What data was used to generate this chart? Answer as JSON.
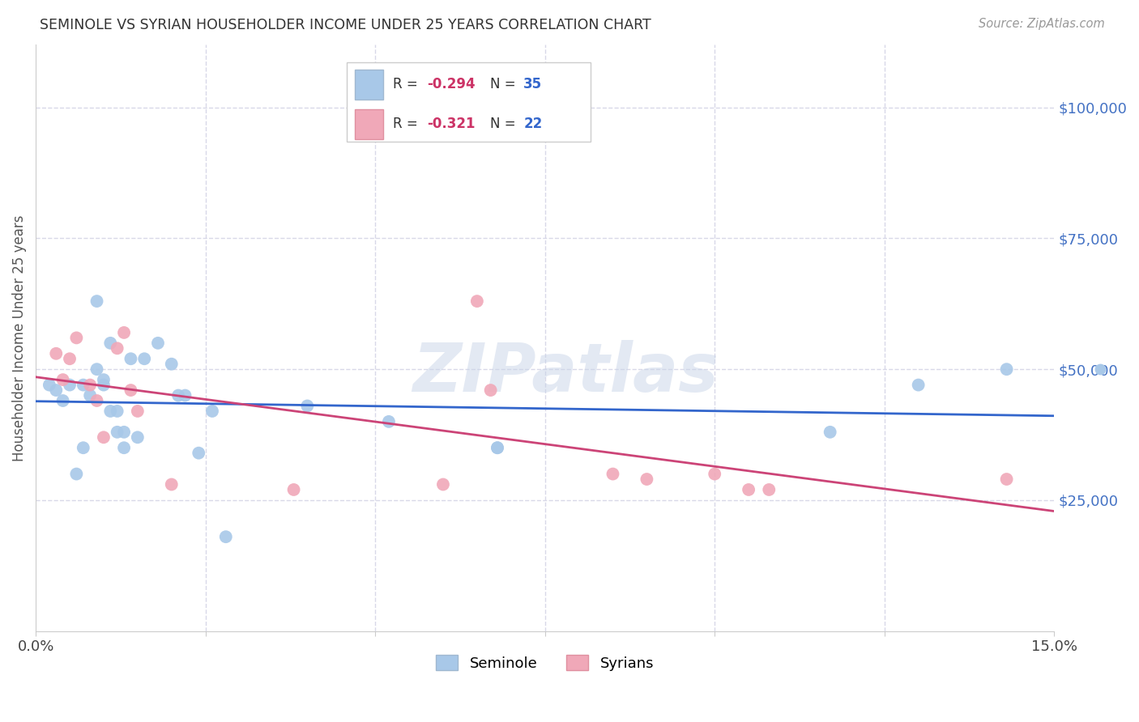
{
  "title": "SEMINOLE VS SYRIAN HOUSEHOLDER INCOME UNDER 25 YEARS CORRELATION CHART",
  "source": "Source: ZipAtlas.com",
  "ylabel": "Householder Income Under 25 years",
  "xlim": [
    0.0,
    0.15
  ],
  "ylim": [
    0,
    112000
  ],
  "ytick_labels_right": [
    "$25,000",
    "$50,000",
    "$75,000",
    "$100,000"
  ],
  "ytick_values_right": [
    25000,
    50000,
    75000,
    100000
  ],
  "seminole_R": "-0.294",
  "seminole_N": "35",
  "syrians_R": "-0.321",
  "syrians_N": "22",
  "seminole_color": "#a8c8e8",
  "syrians_color": "#f0a8b8",
  "regression_seminole_color": "#3366cc",
  "regression_syrians_color": "#cc4477",
  "watermark": "ZIPatlas",
  "background_color": "#ffffff",
  "grid_color": "#d8d8e8",
  "seminole_x": [
    0.002,
    0.003,
    0.004,
    0.005,
    0.006,
    0.007,
    0.007,
    0.008,
    0.009,
    0.009,
    0.01,
    0.01,
    0.011,
    0.011,
    0.012,
    0.012,
    0.013,
    0.013,
    0.014,
    0.015,
    0.016,
    0.018,
    0.02,
    0.021,
    0.022,
    0.024,
    0.026,
    0.028,
    0.04,
    0.052,
    0.068,
    0.068,
    0.117,
    0.13,
    0.143
  ],
  "seminole_y": [
    47000,
    46000,
    44000,
    47000,
    30000,
    35000,
    47000,
    45000,
    63000,
    50000,
    48000,
    47000,
    55000,
    42000,
    42000,
    38000,
    35000,
    38000,
    52000,
    37000,
    52000,
    55000,
    51000,
    45000,
    45000,
    34000,
    42000,
    18000,
    43000,
    40000,
    35000,
    35000,
    38000,
    47000,
    50000
  ],
  "syrians_x": [
    0.003,
    0.004,
    0.005,
    0.006,
    0.008,
    0.009,
    0.01,
    0.012,
    0.013,
    0.014,
    0.015,
    0.02,
    0.038,
    0.06,
    0.065,
    0.067,
    0.085,
    0.09,
    0.1,
    0.105,
    0.108,
    0.143
  ],
  "syrians_y": [
    53000,
    48000,
    52000,
    56000,
    47000,
    44000,
    37000,
    54000,
    57000,
    46000,
    42000,
    28000,
    27000,
    28000,
    63000,
    46000,
    30000,
    29000,
    30000,
    27000,
    27000,
    29000
  ]
}
